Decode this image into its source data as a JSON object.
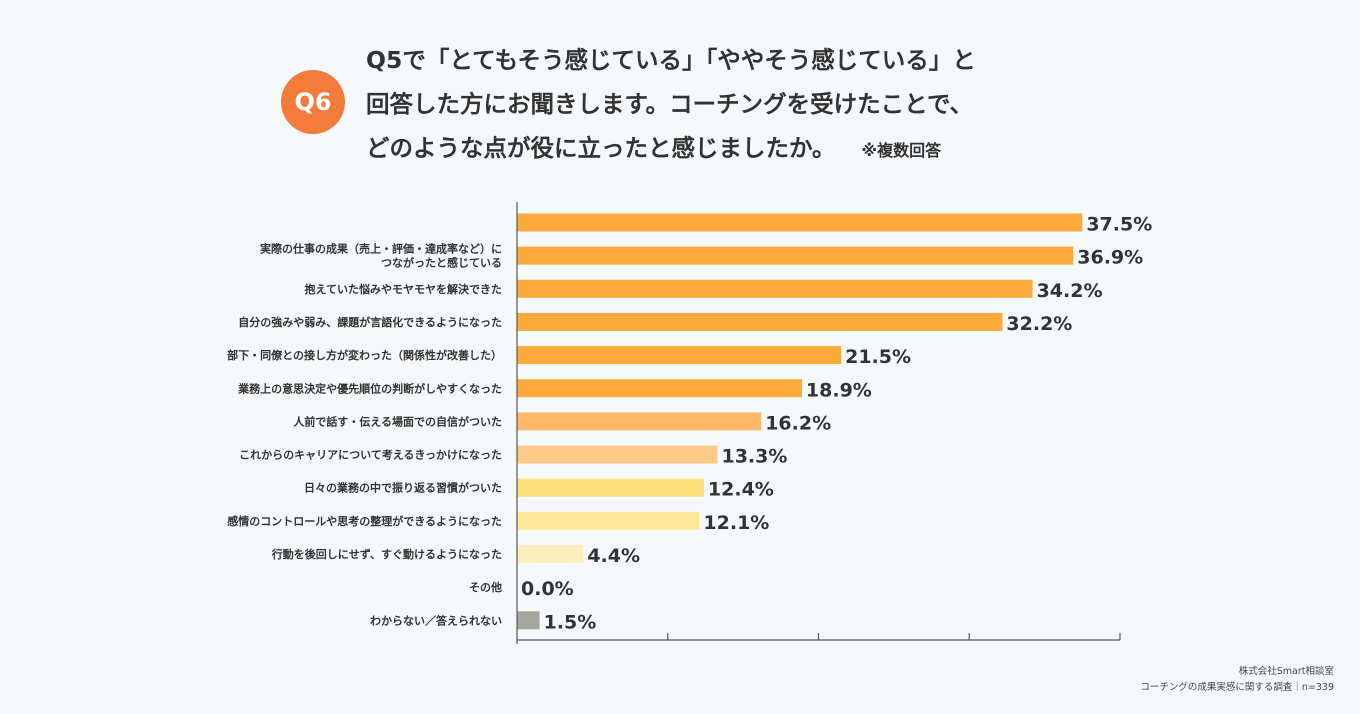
{
  "badge": "Q6",
  "question": {
    "line1": "Q5で「とてもそう感じている」「ややそう感じている」と",
    "line2": "回答した方にお聞きします。コーチングを受けたことで、",
    "line3": "どのような点が役に立ったと感じましたか。",
    "note": "※複数回答"
  },
  "credit": {
    "company": "株式会社Smart相談室",
    "survey": "コーチングの成果実感に関する調査｜n=339"
  },
  "chart_data": {
    "type": "bar",
    "orientation": "horizontal",
    "unit": "%",
    "xlim": [
      0,
      40
    ],
    "grid": false,
    "categories": [
      "",
      "実際の仕事の成果（売上・評価・達成率など）に\nつながったと感じている",
      "抱えていた悩みやモヤモヤを解決できた",
      "自分の強みや弱み、課題が言語化できるようになった",
      "部下・同僚との接し方が変わった（関係性が改善した）",
      "業務上の意思決定や優先順位の判断がしやすくなった",
      "人前で話す・伝える場面での自信がついた",
      "これからのキャリアについて考えるきっかけになった",
      "日々の業務の中で振り返る習慣がついた",
      "感情のコントロールや思考の整理ができるようになった",
      "行動を後回しにせず、すぐ動けるようになった",
      "その他",
      "わからない／答えられない"
    ],
    "values": [
      37.5,
      36.9,
      34.2,
      32.2,
      21.5,
      18.9,
      16.2,
      13.3,
      12.4,
      12.1,
      4.4,
      0.0,
      1.5
    ],
    "value_labels": [
      "37.5%",
      "36.9%",
      "34.2%",
      "32.2%",
      "21.5%",
      "18.9%",
      "16.2%",
      "13.3%",
      "12.4%",
      "12.1%",
      "4.4%",
      "0.0%",
      "1.5%"
    ],
    "colors": [
      "#fcaa3c",
      "#fcaa3c",
      "#fcaa3c",
      "#fcaa3c",
      "#fcaa3c",
      "#fcaa3c",
      "#fdb868",
      "#fdca8a",
      "#fde07a",
      "#fde898",
      "#fdeec0",
      "#fdeec0",
      "#a5a69c"
    ]
  }
}
